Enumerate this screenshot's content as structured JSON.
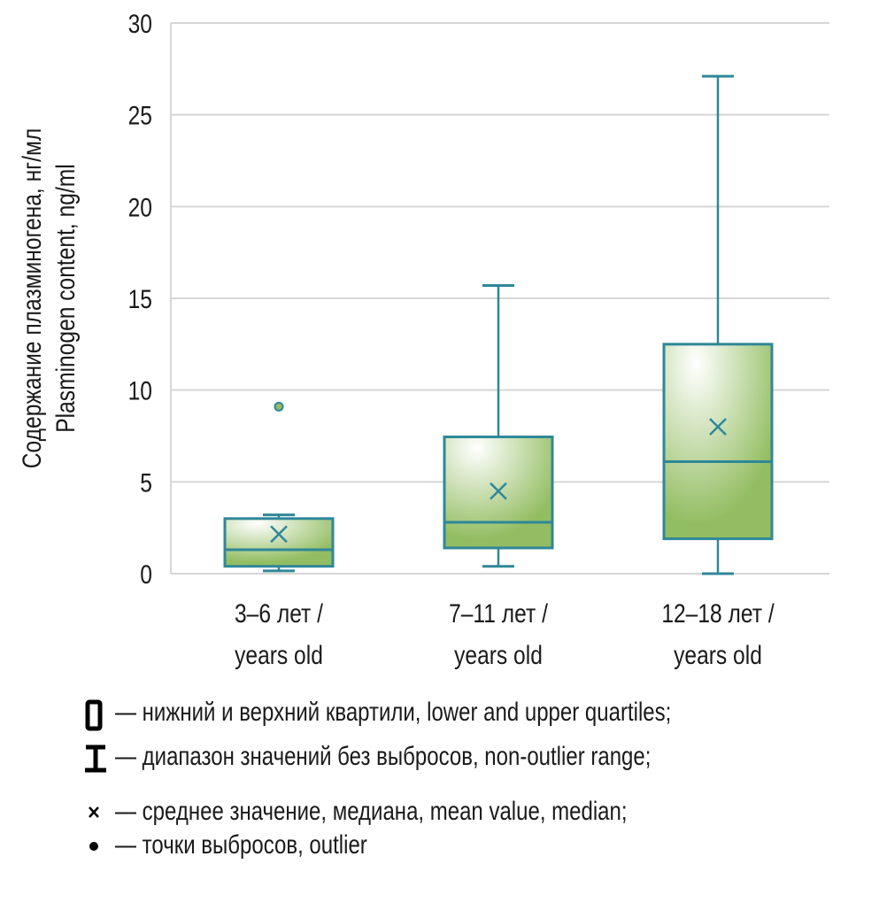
{
  "chart_data": {
    "type": "box",
    "title": "",
    "ylabel_lines": [
      "Содержание плазминогена, нг/мл",
      "Plasminogen content, ng/ml"
    ],
    "xlabel": "",
    "ylim": [
      0,
      30
    ],
    "yticks": [
      0,
      5,
      10,
      15,
      20,
      25,
      30
    ],
    "grid": true,
    "categories": [
      {
        "line1": "3–6 лет /",
        "line2": "years old"
      },
      {
        "line1": "7–11 лет /",
        "line2": "years old"
      },
      {
        "line1": "12–18 лет /",
        "line2": "years old"
      }
    ],
    "boxes": [
      {
        "whisker_low": 0.15,
        "q1": 0.4,
        "median": 1.3,
        "q3": 3.0,
        "whisker_high": 3.2,
        "mean": 2.15,
        "outliers": [
          9.1
        ]
      },
      {
        "whisker_low": 0.4,
        "q1": 1.4,
        "median": 2.8,
        "q3": 7.45,
        "whisker_high": 15.7,
        "mean": 4.5,
        "outliers": []
      },
      {
        "whisker_low": 0.0,
        "q1": 1.9,
        "median": 6.1,
        "q3": 12.5,
        "whisker_high": 27.1,
        "mean": 8.0,
        "outliers": []
      }
    ],
    "colors": {
      "stroke": "#2f8799",
      "fill_light": "#ffffff",
      "fill_dark": "#93bd62",
      "grid": "#d6d6d6"
    }
  },
  "legend": [
    {
      "icon": "box-icon",
      "text": "— нижний и верхний квартили, lower and upper quartiles;"
    },
    {
      "icon": "whisker-icon",
      "text": "— диапазон значений без выбросов, non-outlier range;"
    },
    {
      "icon": "cross-icon",
      "text": "— среднее значение, медиана, mean value, median;"
    },
    {
      "icon": "dot-icon",
      "text": "— точки выбросов, outlier"
    }
  ]
}
